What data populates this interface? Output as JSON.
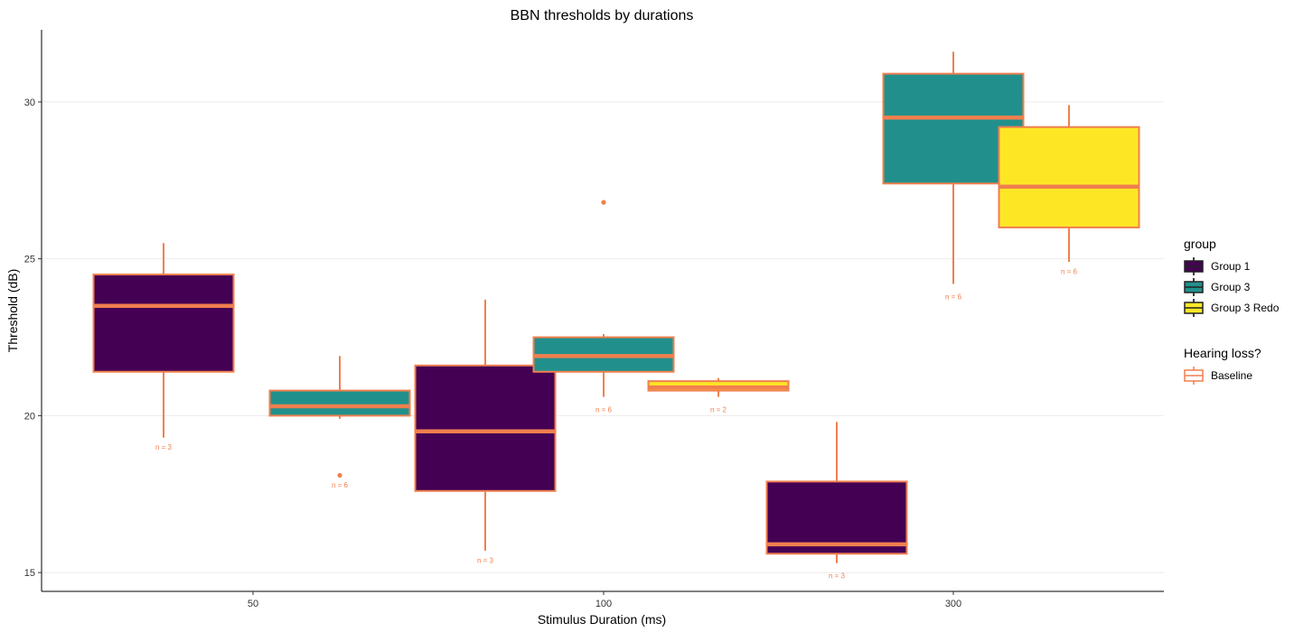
{
  "chart_data": {
    "type": "boxplot",
    "title": "BBN thresholds by durations",
    "xlabel": "Stimulus Duration (ms)",
    "ylabel": "Threshold (dB)",
    "categories": [
      "50",
      "100",
      "300"
    ],
    "yticks": [
      15,
      20,
      25,
      30
    ],
    "ylim": [
      14.4,
      32.3
    ],
    "grid": "horizontal major",
    "legend_placement": "right",
    "outline_color": "#F07F4E",
    "group_legend": {
      "title": "group",
      "entries": [
        {
          "label": "Group 1",
          "color": "#440154"
        },
        {
          "label": "Group 3",
          "color": "#21908C"
        },
        {
          "label": "Group 3 Redo",
          "color": "#FDE725"
        }
      ]
    },
    "hearing_legend": {
      "title": "Hearing loss?",
      "entries": [
        {
          "label": "Baseline",
          "color": "#F07F4E"
        }
      ]
    },
    "boxes": [
      {
        "category": "50",
        "group": "Group 1",
        "slot": 0,
        "min": 19.3,
        "q1": 21.4,
        "median": 23.5,
        "q3": 24.5,
        "max": 25.5,
        "outliers": [],
        "n_label": "n = 3",
        "n_y": 19.0
      },
      {
        "category": "50",
        "group": "Group 3",
        "slot": 1,
        "min": 19.9,
        "q1": 20.0,
        "median": 20.3,
        "q3": 20.8,
        "max": 21.9,
        "outliers": [
          18.1
        ],
        "n_label": "n = 6",
        "n_y": 17.8
      },
      {
        "category": "100",
        "group": "Group 1",
        "slot": 0,
        "min": 15.7,
        "q1": 17.6,
        "median": 19.5,
        "q3": 21.6,
        "max": 23.7,
        "outliers": [],
        "n_label": "n = 3",
        "n_y": 15.4
      },
      {
        "category": "100",
        "group": "Group 3",
        "slot": 1,
        "min": 20.6,
        "q1": 21.4,
        "median": 21.9,
        "q3": 22.5,
        "max": 22.6,
        "outliers": [
          26.8
        ],
        "n_label": "n = 6",
        "n_y": 20.2
      },
      {
        "category": "100",
        "group": "Group 3 Redo",
        "slot": 2,
        "min": 20.6,
        "q1": 20.8,
        "median": 20.9,
        "q3": 21.1,
        "max": 21.2,
        "outliers": [],
        "n_label": "n = 2",
        "n_y": 20.2
      },
      {
        "category": "300",
        "group": "Group 1",
        "slot": 0,
        "min": 15.3,
        "q1": 15.6,
        "median": 15.9,
        "q3": 17.9,
        "max": 19.8,
        "outliers": [],
        "n_label": "n = 3",
        "n_y": 14.9
      },
      {
        "category": "300",
        "group": "Group 3",
        "slot": 1,
        "min": 24.2,
        "q1": 27.4,
        "median": 29.5,
        "q3": 30.9,
        "max": 31.6,
        "outliers": [],
        "n_label": "n = 6",
        "n_y": 23.8
      },
      {
        "category": "300",
        "group": "Group 3 Redo",
        "slot": 2,
        "min": 24.9,
        "q1": 26.0,
        "median": 27.3,
        "q3": 29.2,
        "max": 29.9,
        "outliers": [],
        "n_label": "n = 6",
        "n_y": 24.6
      }
    ]
  }
}
